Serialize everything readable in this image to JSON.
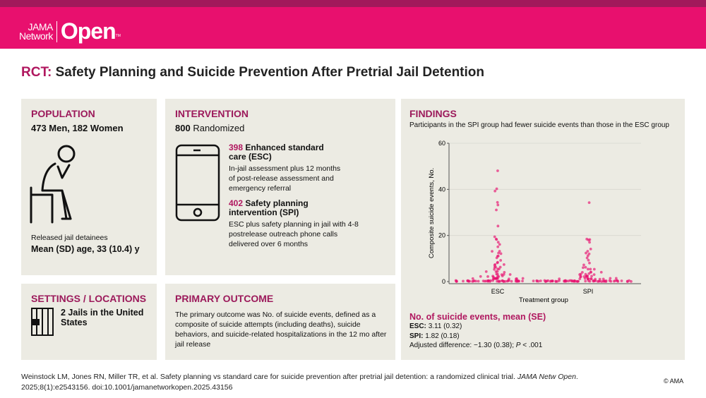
{
  "header": {
    "logo_small": [
      "JAMA",
      "Network"
    ],
    "logo_big": "Open",
    "logo_tm": "TM"
  },
  "title": {
    "prefix": "RCT:",
    "text": "Safety Planning and Suicide Prevention After Pretrial Jail Detention"
  },
  "population": {
    "heading": "POPULATION",
    "count": "473 Men, 182 Women",
    "icon": "person-seated-head-in-hand-icon",
    "desc": "Released jail detainees",
    "age": "Mean (SD) age, 33 (10.4) y"
  },
  "intervention": {
    "heading": "INTERVENTION",
    "n": "800",
    "n_label": "Randomized",
    "icon": "smartphone-icon",
    "arms": [
      {
        "n": "398",
        "name": "Enhanced standard care (ESC)",
        "desc": "In-jail assessment plus 12 months of post-release assessment and emergency referral"
      },
      {
        "n": "402",
        "name": "Safety planning intervention (SPI)",
        "desc": "ESC plus safety planning in jail with 4-8 postrelease outreach phone calls delivered over 6 months"
      }
    ]
  },
  "settings": {
    "heading": "SETTINGS / LOCATIONS",
    "icon": "jail-cell-icon",
    "text": "2 Jails in the United States"
  },
  "outcome": {
    "heading": "PRIMARY OUTCOME",
    "text": "The primary outcome was No. of suicide events, defined as a composite of suicide attempts (including deaths), suicide behaviors, and suicide-related hospitalizations in the 12 mo after jail release"
  },
  "findings": {
    "heading": "FINDINGS",
    "subtitle": "Participants in the SPI group had fewer suicide events than those in the ESC group",
    "summary_heading": "No. of suicide events, mean (SE)",
    "esc_label": "ESC:",
    "esc_value": "3.11 (0.32)",
    "spi_label": "SPI:",
    "spi_value": "1.82 (0.18)",
    "adjusted": "Adjusted difference: −1.30 (0.38); ",
    "p_label": "P",
    "p_value": " < .001"
  },
  "chart_data": {
    "type": "scatter",
    "xlabel": "Treatment group",
    "ylabel": "Composite suicide events, No.",
    "ylim": [
      0,
      60
    ],
    "yticks": [
      0,
      20,
      40,
      60
    ],
    "grid": true,
    "categories": [
      "ESC",
      "SPI"
    ],
    "color": "#e8106e",
    "series": [
      {
        "category": "ESC",
        "values": [
          48,
          40,
          39,
          34,
          33,
          31,
          24,
          19,
          18,
          18,
          17,
          16,
          15,
          13,
          13,
          12,
          12,
          11,
          11,
          10,
          9,
          8,
          8,
          7,
          7,
          7,
          6,
          6,
          6,
          5,
          5,
          5,
          4,
          4,
          4,
          4,
          3,
          3,
          3,
          3,
          3,
          2,
          2,
          2,
          2,
          2,
          2,
          2,
          1,
          1,
          1,
          1,
          1,
          1,
          1,
          1,
          1,
          1,
          1,
          1,
          1,
          0,
          0,
          0,
          0,
          0,
          0,
          0,
          0,
          0,
          0,
          0,
          0,
          0,
          0,
          0,
          0,
          0,
          0,
          0,
          0,
          0,
          0,
          0,
          0,
          0,
          0,
          0,
          0,
          0,
          0,
          0,
          0,
          0,
          0,
          0,
          0,
          0,
          0,
          0,
          0,
          0,
          0,
          0,
          0,
          0,
          0,
          0,
          0,
          0,
          0,
          0
        ]
      },
      {
        "category": "SPI",
        "values": [
          34,
          18,
          18,
          18,
          17,
          14,
          13,
          12,
          12,
          11,
          10,
          9,
          8,
          7,
          6,
          6,
          5,
          5,
          5,
          4,
          4,
          4,
          4,
          3,
          3,
          3,
          3,
          3,
          2,
          2,
          2,
          2,
          2,
          2,
          2,
          2,
          1,
          1,
          1,
          1,
          1,
          1,
          1,
          1,
          1,
          1,
          1,
          1,
          1,
          0,
          0,
          0,
          0,
          0,
          0,
          0,
          0,
          0,
          0,
          0,
          0,
          0,
          0,
          0,
          0,
          0,
          0,
          0,
          0,
          0,
          0,
          0,
          0,
          0,
          0,
          0,
          0,
          0,
          0,
          0,
          0,
          0,
          0,
          0,
          0,
          0,
          0,
          0,
          0,
          0,
          0,
          0,
          0,
          0,
          0,
          0,
          0,
          0,
          0,
          0,
          0,
          0,
          0,
          0,
          0,
          0,
          0,
          0,
          0
        ]
      }
    ]
  },
  "citation": {
    "text": "Weinstock LM, Jones RN, Miller TR, et al. Safety planning vs standard care for suicide prevention after pretrial jail detention: a randomized clinical trial. ",
    "journal": "JAMA Netw Open",
    "rest": ". 2025;8(1):e2543156. doi:10.1001/jamanetworkopen.2025.43156"
  },
  "copyright": "© AMA"
}
